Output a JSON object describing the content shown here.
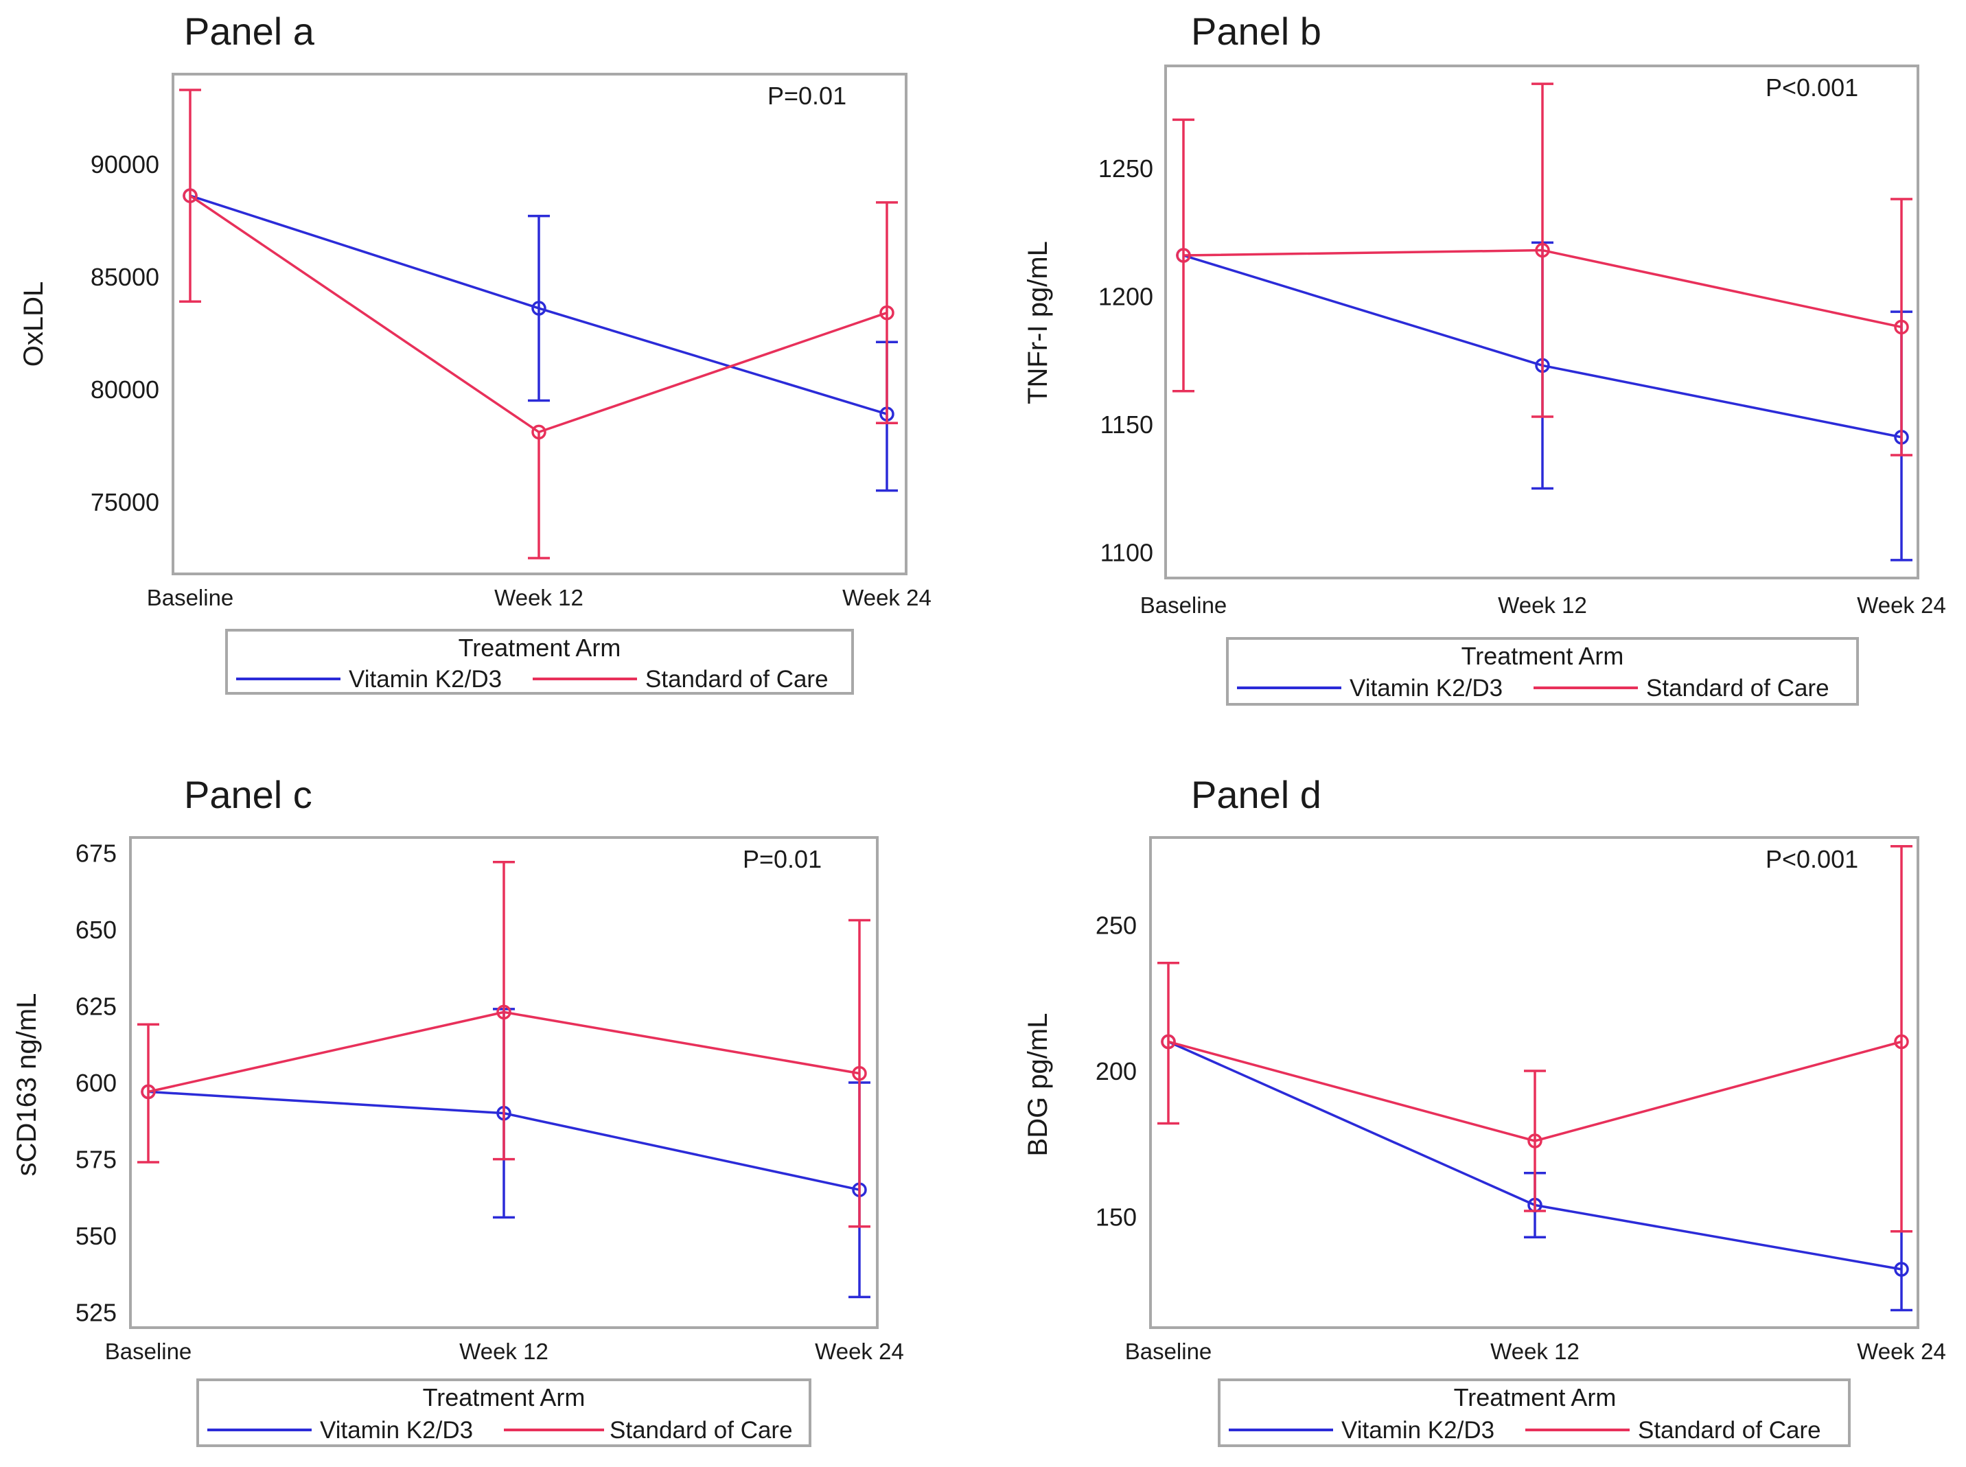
{
  "colors": {
    "k2d3": "#2b2bd8",
    "soc": "#e8305a",
    "frame": "#a8a8a8",
    "text": "#1a1a1a"
  },
  "legend": {
    "title": "Treatment Arm",
    "series_labels": [
      "Vitamin K2/D3",
      "Standard of Care"
    ]
  },
  "chart_data": [
    {
      "type": "line",
      "panel_title": "Panel a",
      "annotation": "P=0.01",
      "ylabel": "OxLDL",
      "categories": [
        "Baseline",
        "Week 12",
        "Week 24"
      ],
      "yticks": [
        "75000",
        "80000",
        "85000",
        "90000"
      ],
      "ytick_values": [
        75000,
        80000,
        85000,
        90000
      ],
      "ylim": [
        71800,
        94000
      ],
      "series": [
        {
          "name": "Vitamin K2/D3",
          "values": [
            88600,
            83600,
            78900
          ],
          "lower": [
            88600,
            79500,
            75500
          ],
          "upper": [
            88600,
            87700,
            82100
          ]
        },
        {
          "name": "Standard of Care",
          "values": [
            88600,
            78100,
            83400
          ],
          "lower": [
            83900,
            72500,
            78500
          ],
          "upper": [
            93300,
            null,
            88300
          ]
        }
      ]
    },
    {
      "type": "line",
      "panel_title": "Panel b",
      "annotation": "P<0.001",
      "ylabel": "TNFr-I pg/mL",
      "categories": [
        "Baseline",
        "Week 12",
        "Week 24"
      ],
      "yticks": [
        "1100",
        "1150",
        "1200",
        "1250"
      ],
      "ytick_values": [
        1100,
        1150,
        1200,
        1250
      ],
      "ylim": [
        1090,
        1290
      ],
      "series": [
        {
          "name": "Vitamin K2/D3",
          "values": [
            1216,
            1173,
            1145
          ],
          "lower": [
            1216,
            1125,
            1097
          ],
          "upper": [
            1216,
            1221,
            1194
          ]
        },
        {
          "name": "Standard of Care",
          "values": [
            1216,
            1218,
            1188
          ],
          "lower": [
            1163,
            1153,
            1138
          ],
          "upper": [
            1269,
            1283,
            1238
          ]
        }
      ]
    },
    {
      "type": "line",
      "panel_title": "Panel c",
      "annotation": "P=0.01",
      "ylabel": "sCD163 ng/mL",
      "categories": [
        "Baseline",
        "Week 12",
        "Week 24"
      ],
      "yticks": [
        "525",
        "550",
        "575",
        "600",
        "625",
        "650",
        "675"
      ],
      "ytick_values": [
        525,
        550,
        575,
        600,
        625,
        650,
        675
      ],
      "ylim": [
        520,
        680
      ],
      "series": [
        {
          "name": "Vitamin K2/D3",
          "values": [
            597,
            590,
            565
          ],
          "lower": [
            597,
            556,
            530
          ],
          "upper": [
            597,
            624,
            600
          ]
        },
        {
          "name": "Standard of Care",
          "values": [
            597,
            623,
            603
          ],
          "lower": [
            574,
            575,
            553
          ],
          "upper": [
            619,
            672,
            653
          ]
        }
      ]
    },
    {
      "type": "line",
      "panel_title": "Panel d",
      "annotation": "P<0.001",
      "ylabel": "BDG pg/mL",
      "categories": [
        "Baseline",
        "Week 12",
        "Week 24"
      ],
      "yticks": [
        "150",
        "200",
        "250"
      ],
      "ytick_values": [
        150,
        200,
        250
      ],
      "ylim": [
        112,
        280
      ],
      "series": [
        {
          "name": "Vitamin K2/D3",
          "values": [
            210,
            154,
            132
          ],
          "lower": [
            210,
            143,
            118
          ],
          "upper": [
            210,
            165,
            145
          ]
        },
        {
          "name": "Standard of Care",
          "values": [
            210,
            176,
            210
          ],
          "lower": [
            182,
            152,
            145
          ],
          "upper": [
            237,
            200,
            277
          ]
        }
      ]
    }
  ]
}
